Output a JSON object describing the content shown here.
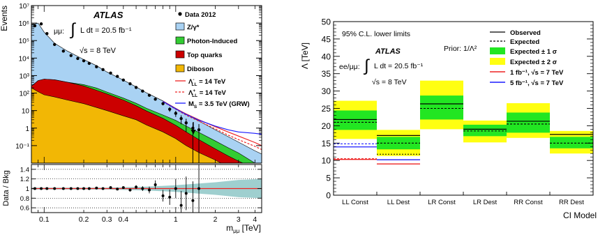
{
  "colors": {
    "zgamma": "#a9d2f3",
    "photon": "#33cc33",
    "top": "#cc0000",
    "diboson": "#f2b705",
    "band1": "#22e622",
    "band2": "#ffff11",
    "red": "#ee2222",
    "blue": "#1a1aff",
    "teal": "#7fbfbf"
  },
  "chart_data": [
    {
      "type": "area",
      "panel": "invariant-mass spectrum with data/background ratio",
      "logx": true,
      "logy": true,
      "xlabel": "m_μμ [TeV]",
      "ylabel": "Events",
      "ratio_ylabel": "Data / Bkg",
      "xlim": [
        0.08,
        4.5
      ],
      "ylim": [
        0.01,
        10000000
      ],
      "ratio_ylim": [
        0.5,
        1.5
      ],
      "x_ticks": [
        {
          "v": 0.1,
          "label": "0.1"
        },
        {
          "v": 0.2,
          "label": "0.2"
        },
        {
          "v": 0.3,
          "label": "0.3"
        },
        {
          "v": 0.4,
          "label": "0.4"
        },
        {
          "v": 1,
          "label": "1"
        },
        {
          "v": 2,
          "label": "2"
        },
        {
          "v": 3,
          "label": "3"
        },
        {
          "v": 4,
          "label": "4"
        }
      ],
      "y_ticks": [
        {
          "v": 0.1,
          "label": "10⁻¹"
        },
        {
          "v": 1,
          "label": "1"
        },
        {
          "v": 10,
          "label": "10"
        },
        {
          "v": 100,
          "label": "10²"
        },
        {
          "v": 1000,
          "label": "10³"
        },
        {
          "v": 10000,
          "label": "10⁴"
        },
        {
          "v": 100000,
          "label": "10⁵"
        },
        {
          "v": 1000000,
          "label": "10⁶"
        },
        {
          "v": 10000000,
          "label": "10⁷"
        }
      ],
      "ratio_ticks": [
        {
          "v": 0.6,
          "label": "0.6"
        },
        {
          "v": 0.8,
          "label": "0.8"
        },
        {
          "v": 1.0,
          "label": "1"
        },
        {
          "v": 1.2,
          "label": "1.2"
        },
        {
          "v": 1.4,
          "label": "1.4"
        }
      ],
      "atlas_label": "ATLAS",
      "channel": "μμ:",
      "lumi_text": "L dt = 20.5 fb⁻¹",
      "energy_text": "√s = 8 TeV",
      "legend": [
        {
          "key": "data",
          "label": "Data 2012"
        },
        {
          "key": "zgamma",
          "label": "Z/γ*"
        },
        {
          "key": "photon",
          "label": "Photon-Induced"
        },
        {
          "key": "top",
          "label": "Top quarks"
        },
        {
          "key": "diboson",
          "label": "Diboson"
        },
        {
          "key": "llminus",
          "label": "Λ⁻LL = 14 TeV"
        },
        {
          "key": "llplus",
          "label": "Λ⁺LL = 14 TeV"
        },
        {
          "key": "grw",
          "label": "M_S = 3.5 TeV (GRW)"
        }
      ],
      "stack_x": [
        0.08,
        0.09,
        0.1,
        0.12,
        0.15,
        0.2,
        0.25,
        0.3,
        0.4,
        0.5,
        0.6,
        0.8,
        1.0,
        1.2,
        1.5,
        2.0,
        2.5,
        3.0,
        4.0,
        4.5
      ],
      "series": [
        {
          "name": "Z/γ*",
          "values": [
            800000,
            1000000,
            300000,
            70000,
            25000,
            8000,
            3500,
            1500,
            500,
            200,
            90,
            30,
            11,
            5,
            2,
            0.6,
            0.25,
            0.12,
            0.04,
            0.025
          ]
        },
        {
          "name": "Photon-Induced",
          "values": [
            0,
            0,
            0,
            0,
            0,
            50,
            50,
            25,
            12,
            7,
            4,
            2,
            1.3,
            0.7,
            0.35,
            0.12,
            0.05,
            0.025,
            0.01,
            0.008
          ]
        },
        {
          "name": "Top quarks",
          "values": [
            50,
            400,
            550,
            520,
            380,
            230,
            130,
            80,
            35,
            16,
            8,
            3,
            1.2,
            0.5,
            0.18,
            0.05,
            0.02,
            0.01,
            0,
            0
          ]
        },
        {
          "name": "Diboson",
          "values": [
            200,
            120,
            80,
            60,
            40,
            25,
            15,
            10,
            5,
            3,
            1.5,
            0.6,
            0.25,
            0.1,
            0.04,
            0.015,
            0.006,
            0.003,
            0,
            0
          ]
        }
      ],
      "signals": [
        {
          "name": "Λ⁻LL = 14 TeV",
          "x": [
            0.8,
            1.0,
            1.2,
            1.5,
            2.0,
            2.5,
            3.0,
            4.0,
            4.5
          ],
          "values": [
            34,
            13,
            6.5,
            3,
            1.2,
            0.6,
            0.35,
            0.15,
            0.1
          ]
        },
        {
          "name": "Λ⁺LL = 14 TeV",
          "x": [
            0.8,
            1.0,
            1.2,
            1.5,
            2.0,
            2.5,
            3.0,
            4.0,
            4.5
          ],
          "values": [
            32,
            12,
            5.5,
            2.5,
            0.9,
            0.4,
            0.22,
            0.09,
            0.06
          ]
        },
        {
          "name": "M_S = 3.5 TeV (GRW)",
          "x": [
            0.8,
            1.0,
            1.2,
            1.5,
            2.0,
            2.5,
            3.0,
            4.0,
            4.5
          ],
          "values": [
            33,
            12.5,
            6,
            2.8,
            1.3,
            0.8,
            0.6,
            0.5,
            0.45
          ]
        }
      ],
      "data_points": {
        "x": [
          0.085,
          0.095,
          0.105,
          0.12,
          0.14,
          0.16,
          0.18,
          0.2,
          0.22,
          0.25,
          0.28,
          0.32,
          0.36,
          0.4,
          0.45,
          0.5,
          0.56,
          0.63,
          0.7,
          0.8,
          0.9,
          1.0,
          1.1,
          1.2,
          1.35,
          1.5
        ],
        "y": [
          700000,
          900000,
          250000,
          60000,
          25000,
          14000,
          9500,
          7000,
          5000,
          3200,
          2200,
          1400,
          900,
          560,
          340,
          210,
          130,
          75,
          45,
          25,
          12,
          7,
          3.5,
          2.0,
          1.0,
          0.8
        ]
      },
      "ratio": {
        "x": [
          0.085,
          0.095,
          0.105,
          0.12,
          0.14,
          0.16,
          0.18,
          0.2,
          0.22,
          0.25,
          0.28,
          0.32,
          0.36,
          0.4,
          0.45,
          0.5,
          0.56,
          0.63,
          0.7,
          0.8,
          0.9,
          1.0,
          1.1,
          1.2,
          1.35,
          1.5
        ],
        "y": [
          1.0,
          1.0,
          1.0,
          1.0,
          1.0,
          1.0,
          1.0,
          1.0,
          1.0,
          1.01,
          1.0,
          1.02,
          0.99,
          1.02,
          0.97,
          1.03,
          1.0,
          0.97,
          1.08,
          0.85,
          0.82,
          1.0,
          0.65,
          0.9,
          0.75,
          1.0
        ],
        "err": [
          0.005,
          0.005,
          0.005,
          0.005,
          0.005,
          0.005,
          0.005,
          0.006,
          0.007,
          0.01,
          0.012,
          0.015,
          0.018,
          0.022,
          0.03,
          0.04,
          0.05,
          0.07,
          0.09,
          0.12,
          0.16,
          0.2,
          0.3,
          0.35,
          0.4,
          0.5
        ],
        "band_x": [
          0.08,
          0.3,
          0.6,
          1.0,
          2.0,
          3.0,
          4.5
        ],
        "band_half": [
          0.02,
          0.02,
          0.04,
          0.07,
          0.13,
          0.18,
          0.2
        ]
      }
    },
    {
      "type": "bar",
      "panel": "95% C.L. lower limits on Λ",
      "ylabel": "Λ [TeV]",
      "xlabel": "CI Model",
      "ylim": [
        0,
        50
      ],
      "y_ticks": [
        0,
        5,
        10,
        15,
        20,
        25,
        30,
        35,
        40,
        45,
        50
      ],
      "categories": [
        "LL Const",
        "LL Dest",
        "LR Const",
        "LR Dest",
        "RR Const",
        "RR Dest"
      ],
      "title": "95% C.L. lower limits",
      "atlas_label": "ATLAS",
      "channel": "ee/μμ:",
      "lumi_text": "L dt = 20.5 fb⁻¹",
      "energy_text": "√s = 8 TeV",
      "prior": "Prior: 1/Λ²",
      "legend": [
        {
          "key": "observed",
          "label": "Observed"
        },
        {
          "key": "expected",
          "label": "Expected"
        },
        {
          "key": "band1",
          "label": "Expected ± 1 σ"
        },
        {
          "key": "band2",
          "label": "Expected ± 2 σ"
        },
        {
          "key": "red",
          "label": "1 fb⁻¹, √s = 7 TeV"
        },
        {
          "key": "blue",
          "label": "5 fb⁻¹, √s = 7 TeV"
        }
      ],
      "series": [
        {
          "name": "Observed",
          "values": [
            21.8,
            17.2,
            26.3,
            19.0,
            21.3,
            17.5
          ]
        },
        {
          "name": "Expected",
          "values": [
            21.0,
            15.0,
            25.0,
            18.5,
            20.5,
            15.0
          ]
        },
        {
          "name": "Expected ± 1 σ",
          "low": [
            18.8,
            13.2,
            21.8,
            17.0,
            18.0,
            13.5
          ],
          "high": [
            24.4,
            16.8,
            28.7,
            20.3,
            23.8,
            16.8
          ]
        },
        {
          "name": "Expected ± 2 σ",
          "low": [
            16.2,
            11.3,
            19.0,
            15.2,
            16.5,
            12.0
          ],
          "high": [
            27.2,
            18.8,
            33.0,
            21.5,
            26.5,
            18.5
          ]
        },
        {
          "name": "1 fb⁻¹, √s = 7 TeV",
          "values": [
            10.3,
            9.0,
            null,
            null,
            null,
            null
          ]
        },
        {
          "name": "5 fb⁻¹, √s = 7 TeV",
          "values": [
            13.9,
            10.2,
            null,
            null,
            null,
            null
          ]
        }
      ],
      "extra_lines": {
        "blue_dashed_ll_const": 14.8,
        "red_dashed_ll_const": 10.5,
        "black_dotted_ll_dest": 11.8,
        "green_tail_ll_dest": 12.8
      }
    }
  ]
}
